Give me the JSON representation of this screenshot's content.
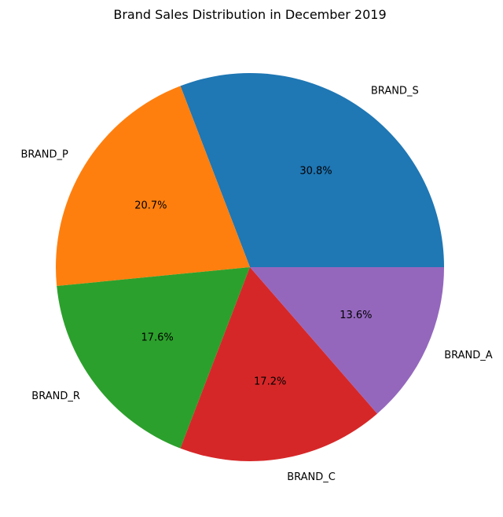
{
  "chart_data": {
    "type": "pie",
    "title": "Brand Sales Distribution in December 2019",
    "categories": [
      "BRAND_S",
      "BRAND_P",
      "BRAND_R",
      "BRAND_C",
      "BRAND_A"
    ],
    "values": [
      30.8,
      20.7,
      17.6,
      17.2,
      13.6
    ],
    "value_labels": [
      "30.8%",
      "20.7%",
      "17.6%",
      "17.2%",
      "13.6%"
    ],
    "colors": [
      "#1f77b4",
      "#ff7f0e",
      "#2ca02c",
      "#d62728",
      "#9467bd"
    ],
    "start_angle": "3 o'clock",
    "direction": "counterclockwise",
    "legend": "none"
  }
}
